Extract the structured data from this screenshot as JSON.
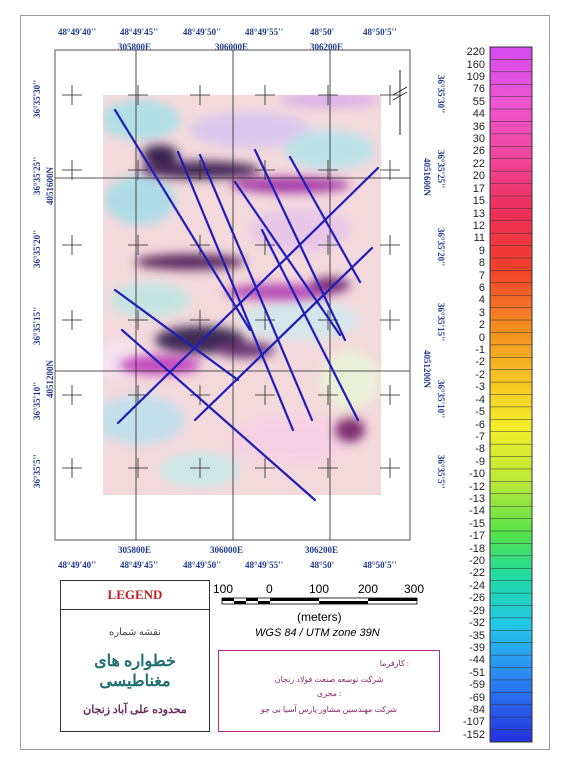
{
  "map": {
    "top_lon_labels": [
      "48°49'40''",
      "48°49'45''",
      "48°49'50''",
      "48°49'55''",
      "48°50'",
      "48°50'5''"
    ],
    "top_utm_labels": [
      "305800E",
      "306000E",
      "306200E"
    ],
    "bottom_utm_labels": [
      "305800E",
      "306000E",
      "306200E"
    ],
    "bottom_lon_labels": [
      "48°49'40''",
      "48°49'45''",
      "48°49'50''",
      "48°49'55''",
      "48°50'",
      "48°50'5''"
    ],
    "left_lat_labels": [
      "36°35'30''",
      "36°35'25''",
      "36°35'20''",
      "36°35'15''",
      "36°35'10''",
      "36°35'5''"
    ],
    "left_utm_labels": [
      "4051600N",
      "4051200N"
    ],
    "right_lat_labels": [
      "36°35'30''",
      "36°35'25''",
      "36°35'20''",
      "36°35'15''",
      "36°35'10''",
      "36°35'5''"
    ],
    "right_utm_labels": [
      "4051600N",
      "4051200N"
    ]
  },
  "colorbar": {
    "labels": [
      "220",
      "160",
      "109",
      "76",
      "55",
      "44",
      "36",
      "30",
      "26",
      "22",
      "20",
      "17",
      "15",
      "13",
      "12",
      "11",
      "9",
      "8",
      "7",
      "6",
      "4",
      "3",
      "2",
      "0",
      "-1",
      "-2",
      "-2",
      "-3",
      "-4",
      "-5",
      "-6",
      "-7",
      "-8",
      "-9",
      "-10",
      "-12",
      "-13",
      "-14",
      "-15",
      "-17",
      "-18",
      "-20",
      "-22",
      "-24",
      "-26",
      "-29",
      "-32",
      "-35",
      "-39",
      "-44",
      "-51",
      "-59",
      "-69",
      "-84",
      "-107",
      "-152"
    ]
  },
  "scalebar": {
    "ticks": [
      "100",
      "0",
      "100",
      "200",
      "300"
    ],
    "units": "(meters)",
    "projection": "WGS 84 / UTM zone 39N"
  },
  "legend": {
    "title": "LEGEND",
    "map_number_label": "نقشه شماره",
    "map_title": "خطواره های مغناطیسی",
    "area_name": "محدوده علی آباد زنجان",
    "employer_label": "کارفرما :",
    "employer_name": "شرکت توسعه صنعت فولاد زنجان",
    "contractor_label": "مجری :",
    "contractor_name": "شرکت مهندسین مشاور پارس آسیا بی جو"
  }
}
